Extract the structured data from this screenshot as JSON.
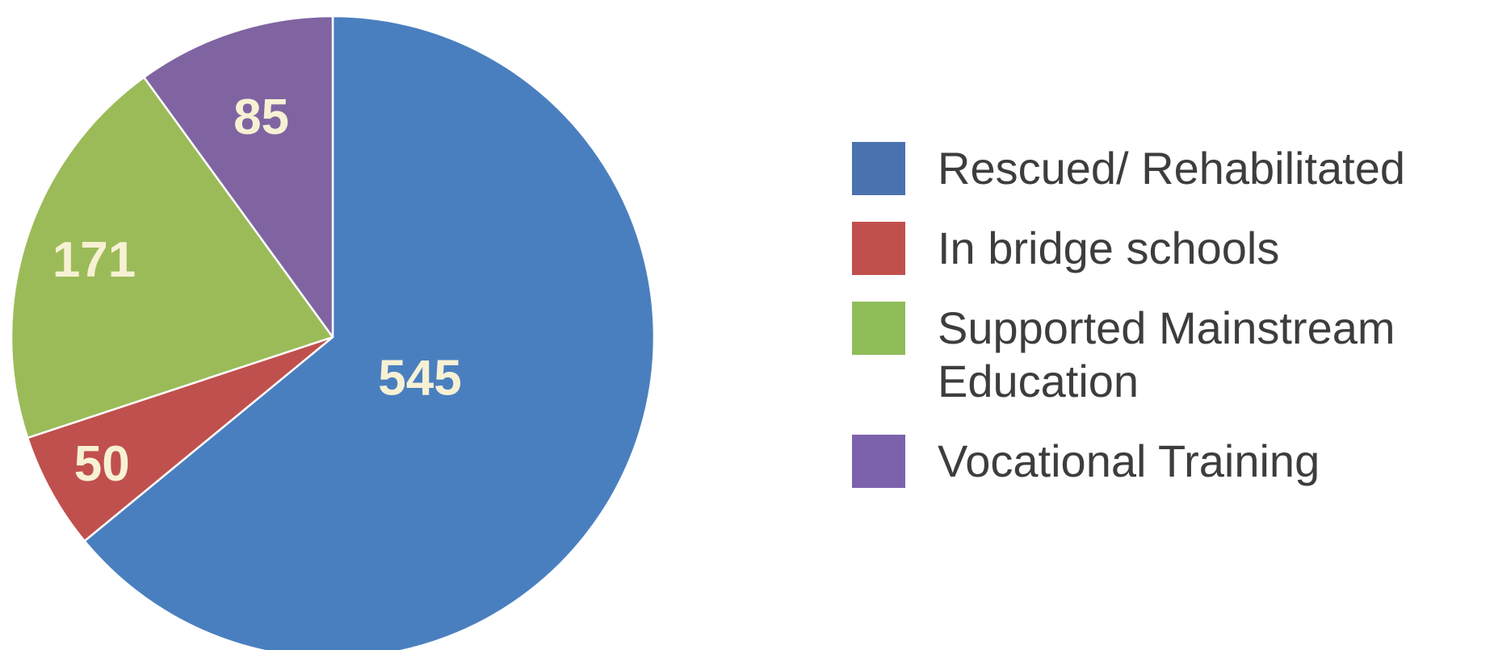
{
  "chart_data": {
    "type": "pie",
    "slices": [
      {
        "label": "Rescued/ Rehabilitated",
        "value": 545,
        "color": "#4a7fbf"
      },
      {
        "label": "In bridge schools",
        "value": 50,
        "color": "#c0504d"
      },
      {
        "label": "Supported Mainstream\nEducation",
        "value": 171,
        "color": "#9bbb59"
      },
      {
        "label": "Vocational Training",
        "value": 85,
        "color": "#8064a2"
      }
    ],
    "start": "12 o'clock",
    "direction": "clockwise",
    "legend_position": "right"
  },
  "legend": {
    "swatch_colors": [
      "#4a72ae",
      "#c0504d",
      "#8fbd5a",
      "#7c62ac"
    ],
    "items": [
      "Rescued/ Rehabilitated",
      "In bridge schools",
      "Supported Mainstream\nEducation",
      "Vocational Training"
    ]
  },
  "slice_labels": [
    "545",
    "50",
    "171",
    "85"
  ]
}
